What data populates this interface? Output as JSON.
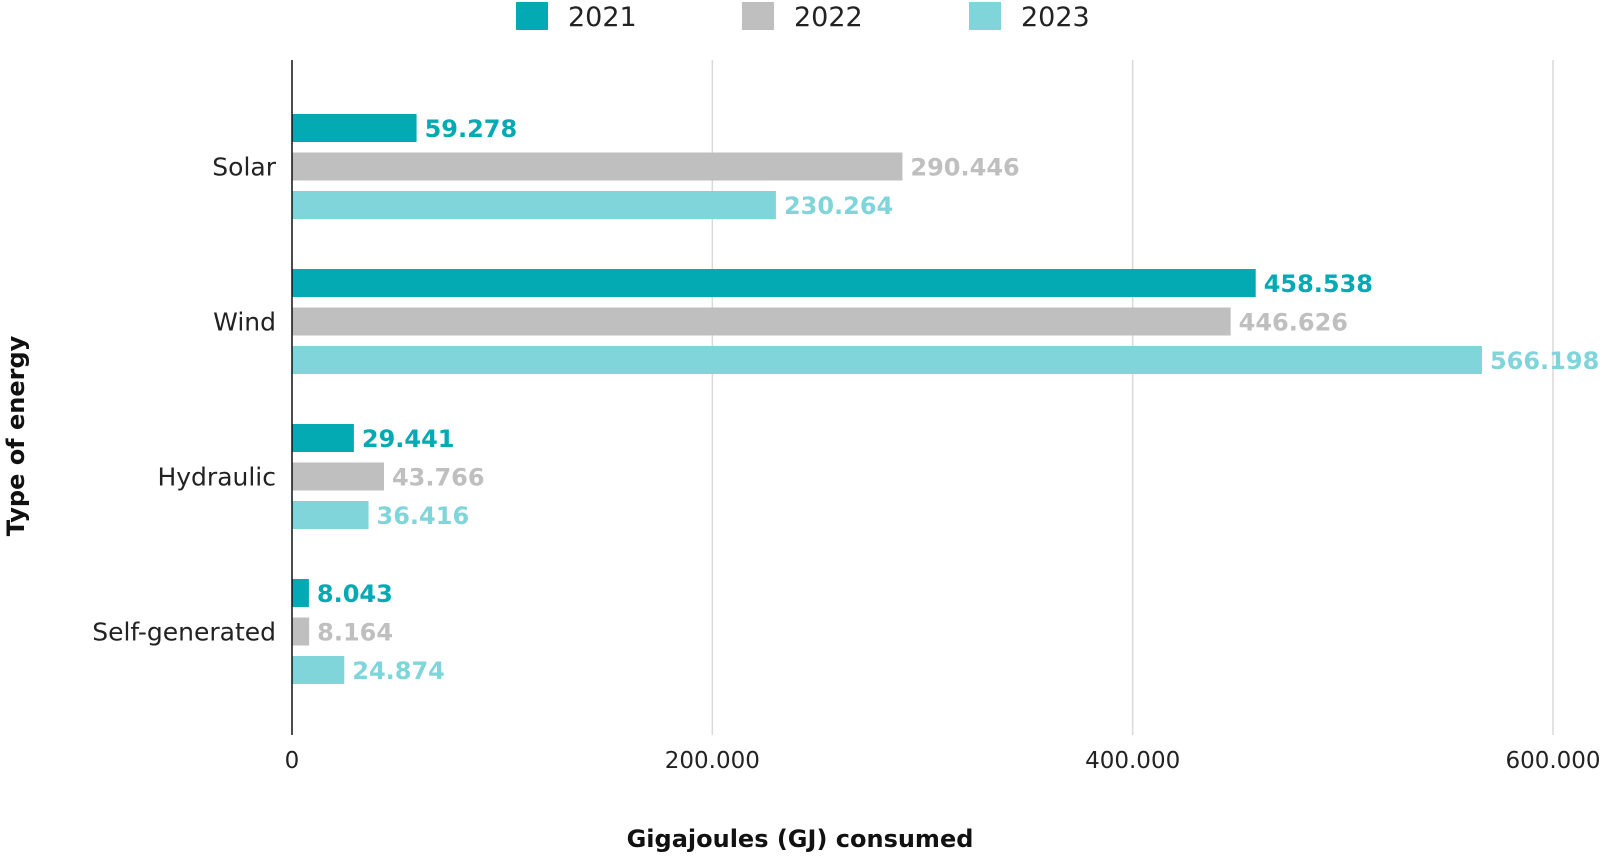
{
  "chart_data": {
    "type": "bar",
    "orientation": "horizontal",
    "xlabel": "Gigajoules (GJ) consumed",
    "ylabel": "Type of energy",
    "categories": [
      "Solar",
      "Wind",
      "Hydraulic",
      "Self-generated"
    ],
    "series": [
      {
        "name": "2021",
        "color": "#03a9b3",
        "values": [
          59278,
          458538,
          29441,
          8043
        ],
        "labels": [
          "59.278",
          "458.538",
          "29.441",
          "8.043"
        ]
      },
      {
        "name": "2022",
        "color": "#bfbfbf",
        "values": [
          290446,
          446626,
          43766,
          8164
        ],
        "labels": [
          "290.446",
          "446.626",
          "43.766",
          "8.164"
        ]
      },
      {
        "name": "2023",
        "color": "#80d5da",
        "values": [
          230264,
          566198,
          36416,
          24874
        ],
        "labels": [
          "230.264",
          "566.198",
          "36.416",
          "24.874"
        ]
      }
    ],
    "xlim": [
      0,
      600000
    ],
    "xticks": [
      0,
      200000,
      400000,
      600000
    ],
    "xtick_labels": [
      "0",
      "200.000",
      "400.000",
      "600.000"
    ],
    "grid": "vertical",
    "legend_position": "top"
  }
}
